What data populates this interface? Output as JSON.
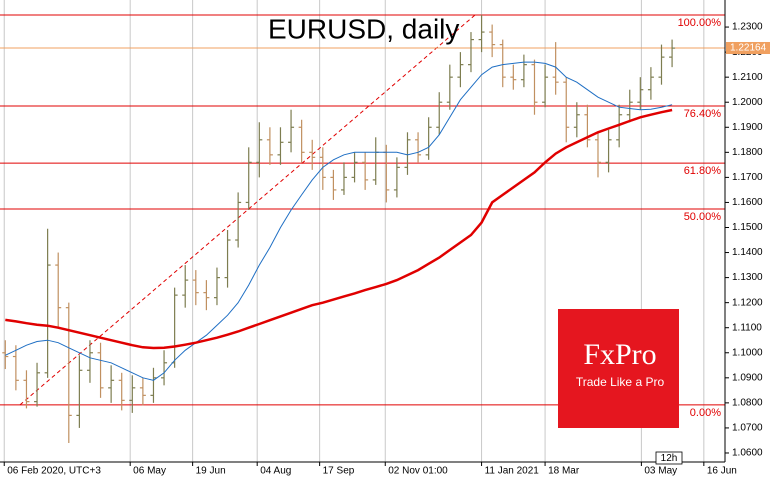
{
  "chart_data": {
    "type": "ohlc",
    "title": "EURUSD, daily",
    "xticks": [
      {
        "value": -0.1,
        "label": "06 Feb 2020, UTC+3"
      },
      {
        "value": 11.8,
        "label": "06 May"
      },
      {
        "value": 17.7,
        "label": "19 Jun"
      },
      {
        "value": 23.8,
        "label": "04 Aug"
      },
      {
        "value": 29.7,
        "label": "17 Sep"
      },
      {
        "value": 35.9,
        "label": "02 Nov 01:00"
      },
      {
        "value": 45.0,
        "label": "11 Jan 2021"
      },
      {
        "value": 51.0,
        "label": "18 Mar"
      },
      {
        "value": 60.1,
        "label": "03 May"
      },
      {
        "value": 66.0,
        "label": "16 Jun"
      }
    ],
    "ylim": [
      1.0564,
      1.2408
    ],
    "yticks": [
      {
        "value": 1.23,
        "label": "1.2300"
      },
      {
        "value": 1.22,
        "label": "1.2200"
      },
      {
        "value": 1.21,
        "label": "1.2100"
      },
      {
        "value": 1.2,
        "label": "1.2000"
      },
      {
        "value": 1.19,
        "label": "1.1900"
      },
      {
        "value": 1.18,
        "label": "1.1800"
      },
      {
        "value": 1.17,
        "label": "1.1700"
      },
      {
        "value": 1.16,
        "label": "1.1600"
      },
      {
        "value": 1.15,
        "label": "1.1500"
      },
      {
        "value": 1.14,
        "label": "1.1400"
      },
      {
        "value": 1.13,
        "label": "1.1300"
      },
      {
        "value": 1.12,
        "label": "1.1200"
      },
      {
        "value": 1.11,
        "label": "1.1100"
      },
      {
        "value": 1.1,
        "label": "1.1000"
      },
      {
        "value": 1.09,
        "label": "1.0900"
      },
      {
        "value": 1.08,
        "label": "1.0800"
      },
      {
        "value": 1.07,
        "label": "1.0700"
      },
      {
        "value": 1.06,
        "label": "1.0600"
      }
    ],
    "grid": true,
    "up_color": "#7d7d50",
    "down_color": "#c09060",
    "open": [
      1.1,
      1.0985,
      1.089,
      1.0805,
      1.092,
      1.135,
      1.118,
      1.075,
      1.093,
      1.1,
      1.086,
      1.089,
      1.081,
      1.086,
      1.083,
      1.09,
      1.096,
      1.123,
      1.129,
      1.124,
      1.122,
      1.13,
      1.145,
      1.16,
      1.176,
      1.185,
      1.179,
      1.184,
      1.19,
      1.18,
      1.178,
      1.17,
      1.165,
      1.17,
      1.176,
      1.169,
      1.18,
      1.165,
      1.174,
      1.185,
      1.179,
      1.19,
      1.2,
      1.21,
      1.215,
      1.225,
      1.228,
      1.223,
      1.21,
      1.209,
      1.215,
      1.2,
      1.21,
      1.208,
      1.19,
      1.195,
      1.185,
      1.176,
      1.185,
      1.195,
      1.2,
      1.205,
      1.21,
      1.218
    ],
    "high": [
      1.105,
      1.103,
      1.093,
      1.096,
      1.1495,
      1.14,
      1.12,
      1.099,
      1.105,
      1.104,
      1.095,
      1.092,
      1.091,
      1.09,
      1.094,
      1.101,
      1.126,
      1.135,
      1.133,
      1.129,
      1.134,
      1.149,
      1.164,
      1.182,
      1.192,
      1.19,
      1.19,
      1.197,
      1.193,
      1.185,
      1.182,
      1.173,
      1.176,
      1.18,
      1.18,
      1.186,
      1.183,
      1.178,
      1.188,
      1.188,
      1.194,
      1.204,
      1.215,
      1.22,
      1.228,
      1.2349,
      1.231,
      1.225,
      1.215,
      1.219,
      1.217,
      1.215,
      1.224,
      1.21,
      1.2,
      1.199,
      1.188,
      1.189,
      1.199,
      1.205,
      1.21,
      1.214,
      1.223,
      1.225
    ],
    "low": [
      1.0935,
      1.085,
      1.0778,
      1.0785,
      1.09,
      1.11,
      1.064,
      1.07,
      1.088,
      1.082,
      1.08,
      1.077,
      1.076,
      1.079,
      1.08,
      1.087,
      1.094,
      1.118,
      1.119,
      1.117,
      1.119,
      1.126,
      1.142,
      1.157,
      1.17,
      1.175,
      1.175,
      1.18,
      1.176,
      1.173,
      1.165,
      1.161,
      1.163,
      1.168,
      1.165,
      1.167,
      1.16,
      1.162,
      1.171,
      1.176,
      1.177,
      1.187,
      1.197,
      1.206,
      1.212,
      1.22,
      1.218,
      1.206,
      1.205,
      1.206,
      1.195,
      1.198,
      1.203,
      1.184,
      1.186,
      1.182,
      1.17,
      1.172,
      1.182,
      1.192,
      1.197,
      1.201,
      1.207,
      1.214
    ],
    "close": [
      1.0985,
      1.089,
      1.0805,
      1.092,
      1.135,
      1.118,
      1.075,
      1.093,
      1.1,
      1.086,
      1.089,
      1.081,
      1.086,
      1.083,
      1.09,
      1.096,
      1.123,
      1.129,
      1.124,
      1.122,
      1.13,
      1.145,
      1.16,
      1.176,
      1.185,
      1.179,
      1.184,
      1.19,
      1.18,
      1.178,
      1.17,
      1.165,
      1.17,
      1.176,
      1.169,
      1.18,
      1.165,
      1.174,
      1.185,
      1.179,
      1.19,
      1.2,
      1.21,
      1.215,
      1.225,
      1.228,
      1.223,
      1.21,
      1.209,
      1.215,
      1.2,
      1.21,
      1.208,
      1.19,
      1.195,
      1.185,
      1.176,
      1.185,
      1.195,
      1.2,
      1.205,
      1.21,
      1.218,
      1.2216
    ],
    "moving_averages": [
      {
        "color": "#1f6fc4",
        "line_width": 1,
        "values": [
          1.099,
          1.101,
          1.103,
          1.1045,
          1.105,
          1.104,
          1.102,
          1.1,
          1.098,
          1.097,
          1.096,
          1.094,
          1.092,
          1.09,
          1.089,
          1.092,
          1.097,
          1.101,
          1.104,
          1.107,
          1.111,
          1.115,
          1.12,
          1.127,
          1.135,
          1.142,
          1.15,
          1.157,
          1.163,
          1.169,
          1.174,
          1.177,
          1.179,
          1.18,
          1.18,
          1.18,
          1.18,
          1.18,
          1.179,
          1.18,
          1.182,
          1.187,
          1.194,
          1.201,
          1.206,
          1.211,
          1.214,
          1.215,
          1.2155,
          1.216,
          1.216,
          1.2155,
          1.214,
          1.21,
          1.208,
          1.205,
          1.202,
          1.2,
          1.198,
          1.1975,
          1.197,
          1.1972,
          1.198,
          1.199
        ]
      },
      {
        "color": "#e00000",
        "line_width": 2.5,
        "values": [
          1.1131,
          1.1125,
          1.1118,
          1.1112,
          1.1108,
          1.11,
          1.109,
          1.108,
          1.107,
          1.106,
          1.105,
          1.104,
          1.103,
          1.1022,
          1.1019,
          1.102,
          1.1025,
          1.1032,
          1.104,
          1.105,
          1.106,
          1.1072,
          1.1085,
          1.11,
          1.1115,
          1.113,
          1.1145,
          1.116,
          1.1175,
          1.119,
          1.12,
          1.1212,
          1.1225,
          1.1237,
          1.125,
          1.1262,
          1.1275,
          1.129,
          1.131,
          1.133,
          1.1355,
          1.138,
          1.141,
          1.144,
          1.147,
          1.152,
          1.16,
          1.163,
          1.166,
          1.169,
          1.172,
          1.176,
          1.1795,
          1.182,
          1.184,
          1.186,
          1.188,
          1.1895,
          1.191,
          1.1925,
          1.194,
          1.195,
          1.196,
          1.1969
        ]
      }
    ],
    "fib_color": "#e00000",
    "fib_levels": [
      {
        "value": 1.2348,
        "label": "100.00%"
      },
      {
        "value": 1.1985,
        "label": "76.40%"
      },
      {
        "value": 1.1757,
        "label": "61.80%"
      },
      {
        "value": 1.1574,
        "label": "50.00%"
      },
      {
        "value": 1.0792,
        "label": "0.00%"
      }
    ],
    "current_price": 1.22164,
    "current_price_color": "#f0a060",
    "period_badge": "12h",
    "logo": {
      "brand": "FxPro",
      "tagline": "Trade Like a Pro"
    }
  }
}
